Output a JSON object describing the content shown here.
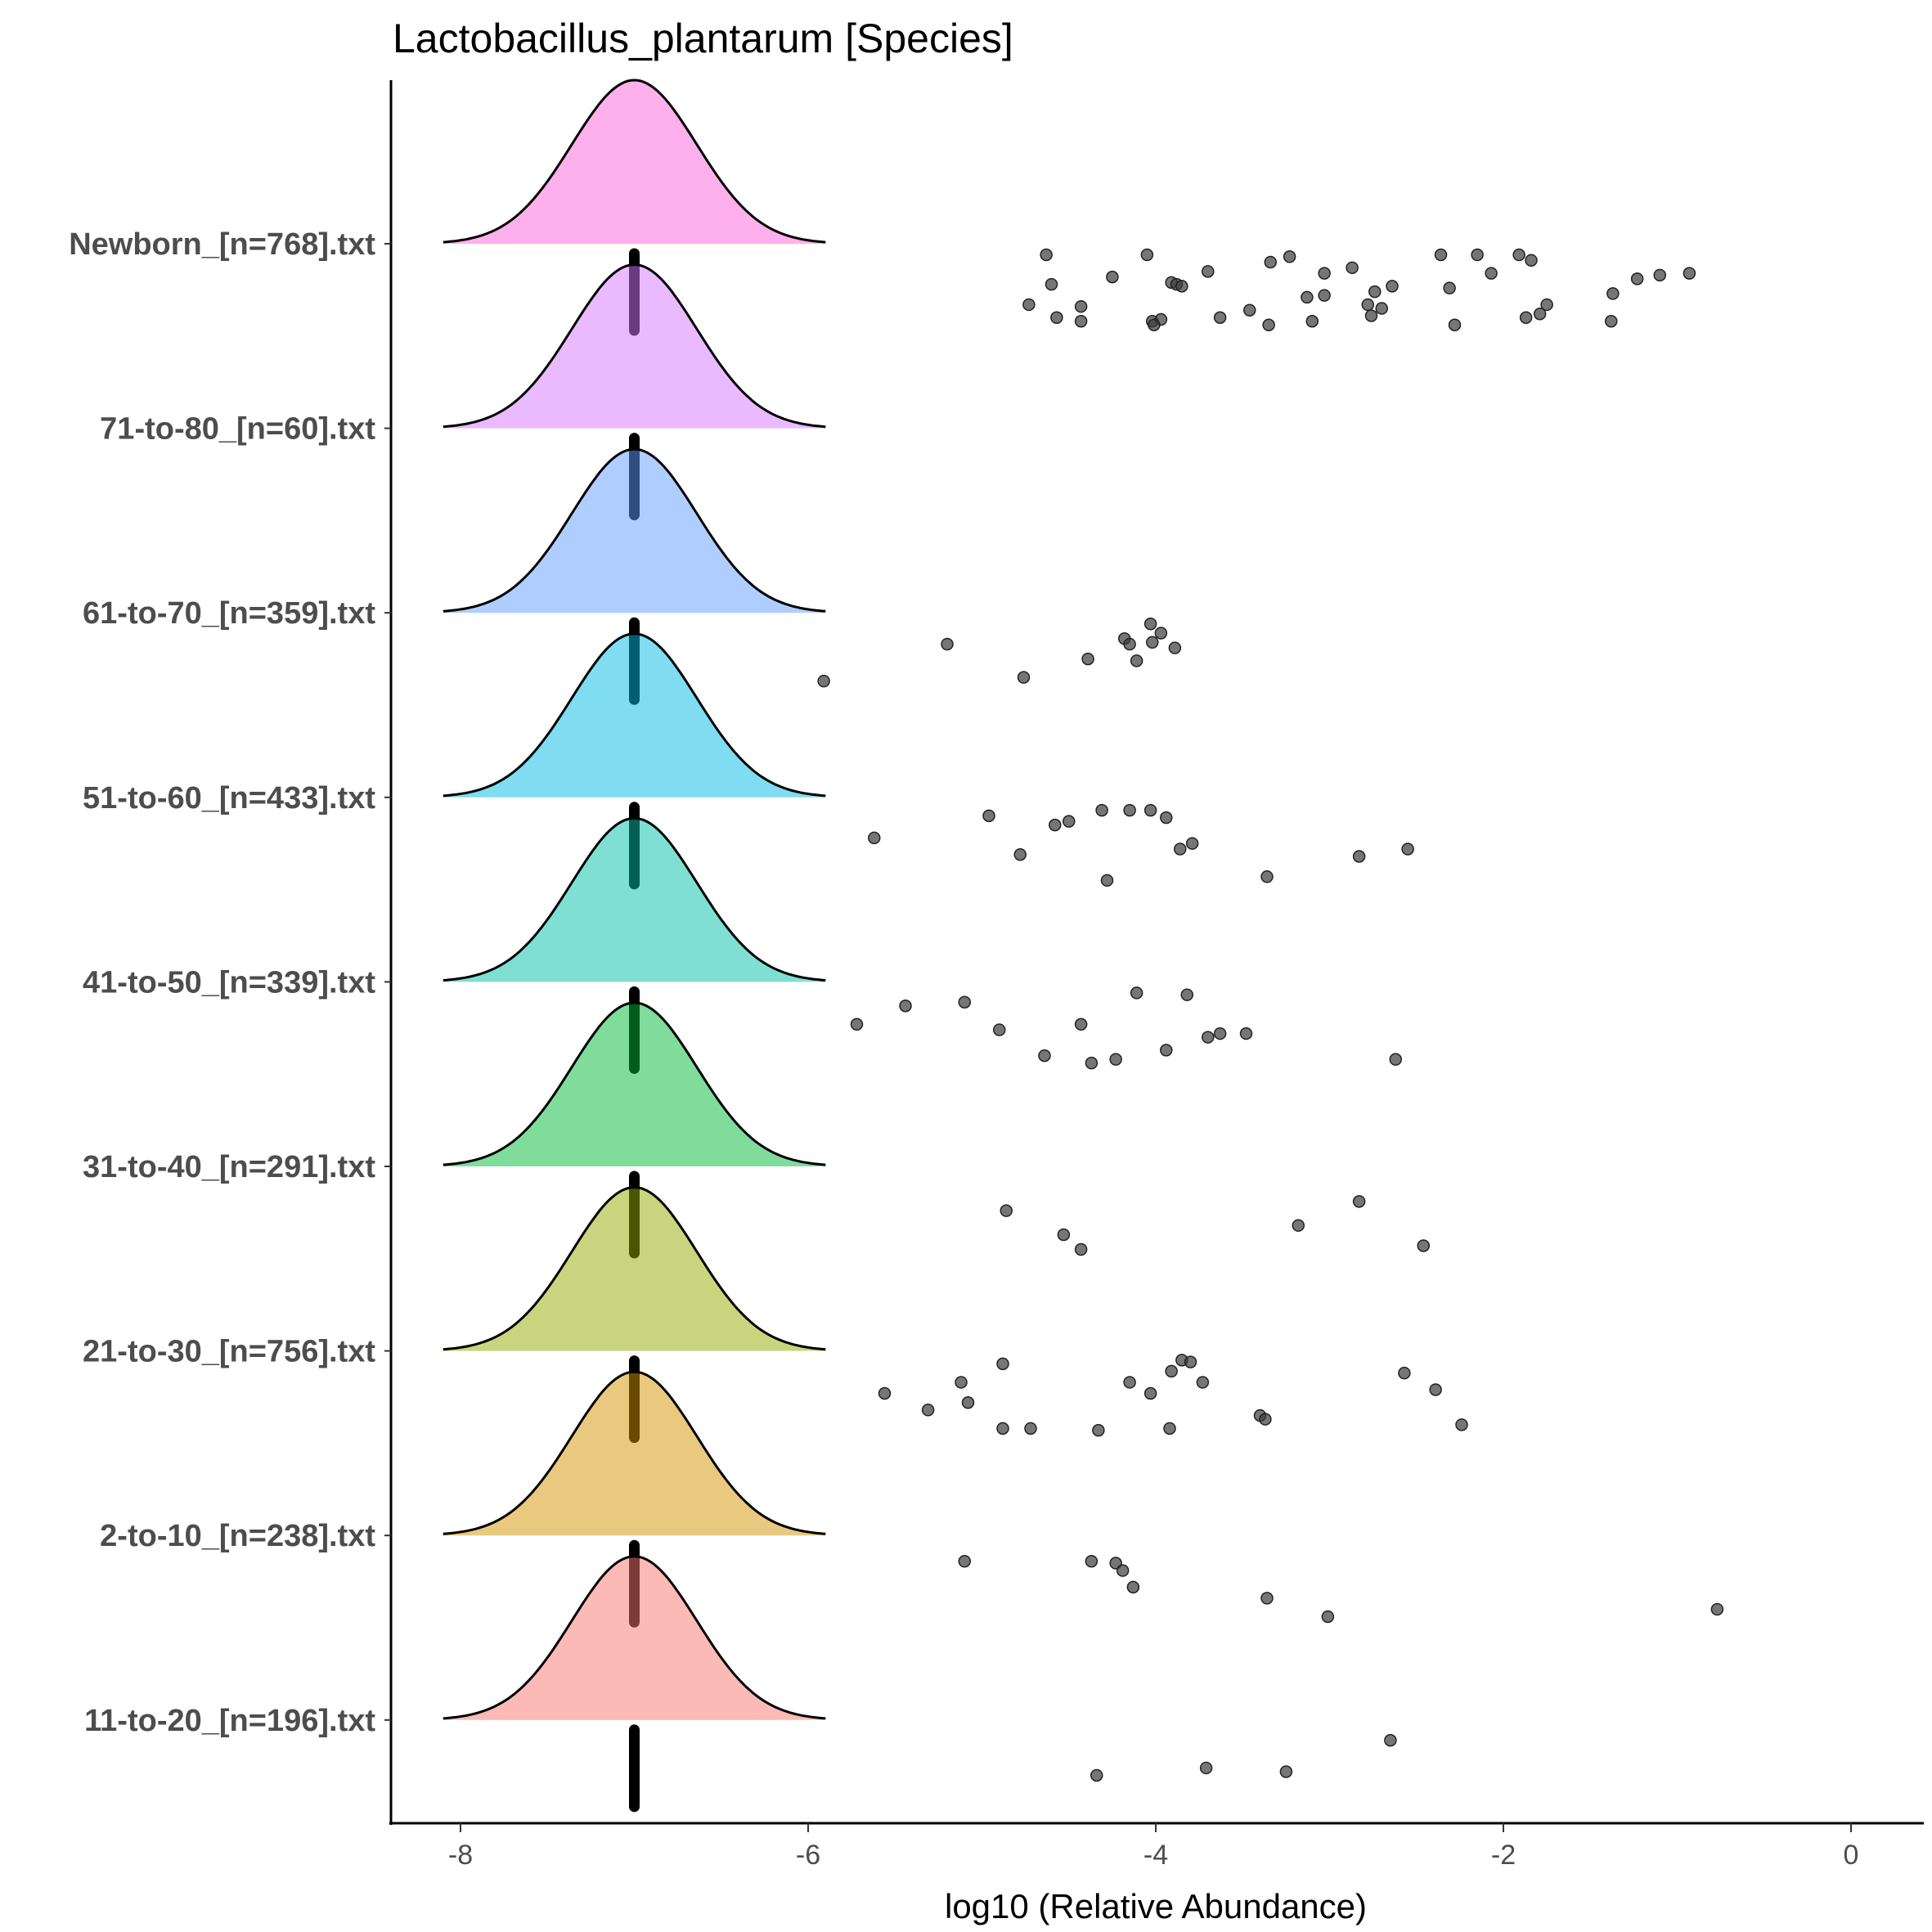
{
  "chart_data": {
    "type": "ridgeline",
    "title": "Lactobacillus_plantarum [Species]",
    "xlabel": "log10 (Relative Abundance)",
    "ylabel": "",
    "xlim": [
      -8.2,
      0.5
    ],
    "xticks": [
      -8,
      -6,
      -4,
      -2,
      0
    ],
    "xtick_labels": [
      "-8",
      "-6",
      "-4",
      "-2",
      "0"
    ],
    "zero_value": -7,
    "density": {
      "mean": -7,
      "sd": 0.36,
      "range": [
        -8.1,
        -5.9
      ]
    },
    "groups": [
      {
        "label": "Newborn_[n=768].txt",
        "color": "#FB61D7",
        "points": [
          [
            -4.63,
            0.06
          ],
          [
            -4.05,
            0.06
          ],
          [
            -1.91,
            0.06
          ],
          [
            -3.23,
            0.07
          ],
          [
            -2.36,
            0.06
          ],
          [
            -2.15,
            0.06
          ],
          [
            -1.84,
            0.09
          ],
          [
            -3.34,
            0.1
          ],
          [
            -2.87,
            0.13
          ],
          [
            -3.7,
            0.15
          ],
          [
            -4.25,
            0.18
          ],
          [
            -3.03,
            0.16
          ],
          [
            -2.07,
            0.16
          ],
          [
            -1.23,
            0.19
          ],
          [
            -1.1,
            0.17
          ],
          [
            -0.93,
            0.16
          ],
          [
            -4.6,
            0.22
          ],
          [
            -3.91,
            0.21
          ],
          [
            -3.88,
            0.22
          ],
          [
            -3.85,
            0.23
          ],
          [
            -2.64,
            0.23
          ],
          [
            -2.31,
            0.24
          ],
          [
            -2.74,
            0.26
          ],
          [
            -3.13,
            0.29
          ],
          [
            -3.03,
            0.28
          ],
          [
            -1.37,
            0.27
          ],
          [
            -4.73,
            0.33
          ],
          [
            -4.43,
            0.34
          ],
          [
            -3.46,
            0.36
          ],
          [
            -2.78,
            0.33
          ],
          [
            -2.7,
            0.35
          ],
          [
            -1.75,
            0.33
          ],
          [
            -1.79,
            0.38
          ],
          [
            -1.87,
            0.4
          ],
          [
            -4.57,
            0.4
          ],
          [
            -4.43,
            0.42
          ],
          [
            -4.02,
            0.42
          ],
          [
            -3.97,
            0.41
          ],
          [
            -3.63,
            0.4
          ],
          [
            -3.35,
            0.44
          ],
          [
            -3.1,
            0.42
          ],
          [
            -2.76,
            0.39
          ],
          [
            -2.28,
            0.44
          ],
          [
            -1.38,
            0.42
          ],
          [
            -4.01,
            0.44
          ]
        ]
      },
      {
        "label": "71-to-80_[n=60].txt",
        "color": "#D575FE",
        "points": []
      },
      {
        "label": "61-to-70_[n=359].txt",
        "color": "#619CFF",
        "points": [
          [
            -5.2,
            0.17
          ],
          [
            -4.18,
            0.14
          ],
          [
            -4.15,
            0.17
          ],
          [
            -4.03,
            0.06
          ],
          [
            -3.97,
            0.11
          ],
          [
            -4.02,
            0.16
          ],
          [
            -3.89,
            0.19
          ],
          [
            -4.39,
            0.25
          ],
          [
            -4.11,
            0.26
          ],
          [
            -4.76,
            0.35
          ],
          [
            -5.91,
            0.37
          ]
        ]
      },
      {
        "label": "51-to-60_[n=433].txt",
        "color": "#00B9E3",
        "points": [
          [
            -4.96,
            0.1
          ],
          [
            -4.31,
            0.07
          ],
          [
            -4.15,
            0.07
          ],
          [
            -4.03,
            0.07
          ],
          [
            -3.94,
            0.11
          ],
          [
            -4.5,
            0.13
          ],
          [
            -4.58,
            0.15
          ],
          [
            -5.62,
            0.22
          ],
          [
            -4.78,
            0.31
          ],
          [
            -3.86,
            0.28
          ],
          [
            -3.79,
            0.25
          ],
          [
            -2.83,
            0.32
          ],
          [
            -2.55,
            0.28
          ],
          [
            -4.28,
            0.45
          ],
          [
            -3.36,
            0.43
          ]
        ]
      },
      {
        "label": "41-to-50_[n=339].txt",
        "color": "#00BFA8",
        "points": [
          [
            -4.11,
            0.06
          ],
          [
            -3.82,
            0.07
          ],
          [
            -5.1,
            0.11
          ],
          [
            -5.44,
            0.13
          ],
          [
            -5.72,
            0.23
          ],
          [
            -4.9,
            0.26
          ],
          [
            -4.43,
            0.23
          ],
          [
            -3.7,
            0.3
          ],
          [
            -3.63,
            0.28
          ],
          [
            -3.48,
            0.28
          ],
          [
            -3.94,
            0.37
          ],
          [
            -4.64,
            0.4
          ],
          [
            -4.37,
            0.44
          ],
          [
            -4.23,
            0.42
          ],
          [
            -2.62,
            0.42
          ]
        ]
      },
      {
        "label": "31-to-40_[n=291].txt",
        "color": "#00BA38",
        "points": [
          [
            -2.83,
            0.19
          ],
          [
            -4.86,
            0.24
          ],
          [
            -3.18,
            0.32
          ],
          [
            -4.53,
            0.37
          ],
          [
            -2.46,
            0.43
          ],
          [
            -4.43,
            0.45
          ]
        ]
      },
      {
        "label": "21-to-30_[n=756].txt",
        "color": "#93AA00",
        "points": [
          [
            -3.85,
            0.05
          ],
          [
            -3.8,
            0.06
          ],
          [
            -4.88,
            0.07
          ],
          [
            -3.91,
            0.11
          ],
          [
            -2.57,
            0.12
          ],
          [
            -5.12,
            0.17
          ],
          [
            -4.15,
            0.17
          ],
          [
            -3.73,
            0.17
          ],
          [
            -2.39,
            0.21
          ],
          [
            -5.56,
            0.23
          ],
          [
            -4.03,
            0.23
          ],
          [
            -5.08,
            0.28
          ],
          [
            -5.31,
            0.32
          ],
          [
            -3.4,
            0.35
          ],
          [
            -3.37,
            0.37
          ],
          [
            -2.24,
            0.4
          ],
          [
            -4.88,
            0.42
          ],
          [
            -4.72,
            0.42
          ],
          [
            -4.33,
            0.43
          ],
          [
            -3.92,
            0.42
          ]
        ]
      },
      {
        "label": "2-to-10_[n=238].txt",
        "color": "#D39200",
        "points": [
          [
            -5.1,
            0.14
          ],
          [
            -4.37,
            0.14
          ],
          [
            -4.23,
            0.15
          ],
          [
            -4.19,
            0.19
          ],
          [
            -4.13,
            0.28
          ],
          [
            -3.36,
            0.34
          ],
          [
            -0.77,
            0.4
          ],
          [
            -3.01,
            0.44
          ]
        ]
      },
      {
        "label": "11-to-20_[n=196].txt",
        "color": "#F8766D",
        "points": [
          [
            -2.65,
            0.11
          ],
          [
            -3.71,
            0.26
          ],
          [
            -3.25,
            0.28
          ],
          [
            -4.34,
            0.3
          ]
        ]
      }
    ]
  }
}
